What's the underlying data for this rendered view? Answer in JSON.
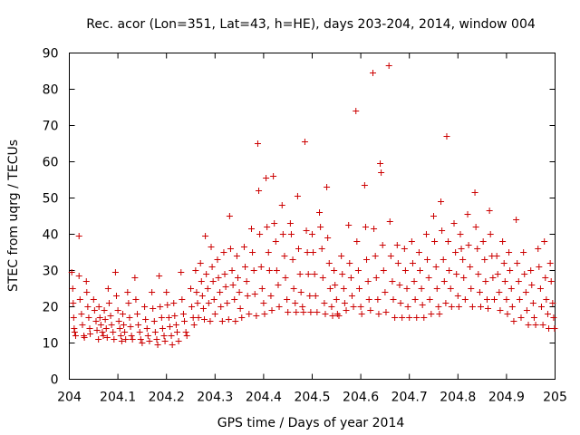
{
  "chart_data": {
    "type": "scatter",
    "title": "Rec. acor (Lon=351, Lat=43, h=HE), days 203-204, 2014, window 004",
    "xlabel": "GPS time / Days of year 2014",
    "ylabel": "STEC from uqrg / TECUs",
    "xlim": [
      204,
      205
    ],
    "ylim": [
      0,
      90
    ],
    "xticks": [
      204,
      204.1,
      204.2,
      204.3,
      204.4,
      204.5,
      204.6,
      204.7,
      204.8,
      204.9,
      205
    ],
    "xtick_labels": [
      "204",
      "204.1",
      "204.2",
      "204.3",
      "204.4",
      "204.5",
      "204.6",
      "204.7",
      "204.8",
      "204.9",
      "205"
    ],
    "yticks": [
      0,
      10,
      20,
      30,
      40,
      50,
      60,
      70,
      80,
      90
    ],
    "ytick_labels": [
      "0",
      "10",
      "20",
      "30",
      "40",
      "50",
      "60",
      "70",
      "80",
      "90"
    ],
    "grid": false,
    "marker": "+",
    "color": "#cc0000",
    "points": [
      [
        204.005,
        29.5
      ],
      [
        204.007,
        25
      ],
      [
        204.008,
        21
      ],
      [
        204.009,
        17
      ],
      [
        204.01,
        14
      ],
      [
        204.011,
        13
      ],
      [
        204.013,
        12
      ],
      [
        204.02,
        28.5
      ],
      [
        204.02,
        39.5
      ],
      [
        204.022,
        22
      ],
      [
        204.025,
        18
      ],
      [
        204.027,
        15
      ],
      [
        204.03,
        12
      ],
      [
        204.031,
        11.5
      ],
      [
        204.035,
        27
      ],
      [
        204.036,
        24
      ],
      [
        204.038,
        20
      ],
      [
        204.04,
        17
      ],
      [
        204.042,
        14
      ],
      [
        204.043,
        12.5
      ],
      [
        204.05,
        22
      ],
      [
        204.052,
        19
      ],
      [
        204.055,
        16
      ],
      [
        204.057,
        13.5
      ],
      [
        204.06,
        11
      ],
      [
        204.061,
        20
      ],
      [
        204.063,
        17
      ],
      [
        204.065,
        15
      ],
      [
        204.068,
        13
      ],
      [
        204.07,
        12
      ],
      [
        204.072,
        19
      ],
      [
        204.074,
        16.5
      ],
      [
        204.076,
        14
      ],
      [
        204.078,
        11.5
      ],
      [
        204.08,
        25
      ],
      [
        204.082,
        21
      ],
      [
        204.085,
        17.5
      ],
      [
        204.087,
        15
      ],
      [
        204.09,
        13
      ],
      [
        204.092,
        11
      ],
      [
        204.095,
        29.5
      ],
      [
        204.097,
        23
      ],
      [
        204.1,
        19
      ],
      [
        204.102,
        16
      ],
      [
        204.104,
        14
      ],
      [
        204.106,
        12
      ],
      [
        204.108,
        10.5
      ],
      [
        204.11,
        18
      ],
      [
        204.112,
        15
      ],
      [
        204.114,
        13
      ],
      [
        204.116,
        11
      ],
      [
        204.12,
        24
      ],
      [
        204.122,
        21
      ],
      [
        204.124,
        17
      ],
      [
        204.126,
        14.5
      ],
      [
        204.128,
        12
      ],
      [
        204.13,
        11
      ],
      [
        204.135,
        28
      ],
      [
        204.137,
        22
      ],
      [
        204.14,
        18
      ],
      [
        204.142,
        15
      ],
      [
        204.145,
        13
      ],
      [
        204.147,
        11
      ],
      [
        204.15,
        10
      ],
      [
        204.155,
        20
      ],
      [
        204.157,
        16.5
      ],
      [
        204.16,
        14
      ],
      [
        204.162,
        12
      ],
      [
        204.165,
        10.5
      ],
      [
        204.17,
        24
      ],
      [
        204.172,
        19.5
      ],
      [
        204.175,
        16
      ],
      [
        204.177,
        13
      ],
      [
        204.18,
        11
      ],
      [
        204.182,
        9.5
      ],
      [
        204.185,
        28.5
      ],
      [
        204.187,
        20
      ],
      [
        204.19,
        17
      ],
      [
        204.192,
        14
      ],
      [
        204.195,
        12
      ],
      [
        204.197,
        10.5
      ],
      [
        204.2,
        24
      ],
      [
        204.202,
        20.5
      ],
      [
        204.205,
        17
      ],
      [
        204.207,
        14.5
      ],
      [
        204.21,
        12
      ],
      [
        204.212,
        9.5
      ],
      [
        204.215,
        21
      ],
      [
        204.217,
        17.5
      ],
      [
        204.22,
        15
      ],
      [
        204.222,
        13
      ],
      [
        204.225,
        10.5
      ],
      [
        204.23,
        29.5
      ],
      [
        204.232,
        22
      ],
      [
        204.235,
        18
      ],
      [
        204.237,
        16
      ],
      [
        204.24,
        13
      ],
      [
        204.242,
        12
      ],
      [
        204.25,
        25
      ],
      [
        204.252,
        20
      ],
      [
        204.255,
        17
      ],
      [
        204.257,
        15
      ],
      [
        204.26,
        30
      ],
      [
        204.262,
        24
      ],
      [
        204.264,
        21
      ],
      [
        204.266,
        17
      ],
      [
        204.27,
        32
      ],
      [
        204.272,
        27
      ],
      [
        204.274,
        23
      ],
      [
        204.276,
        19.5
      ],
      [
        204.278,
        16.5
      ],
      [
        204.28,
        39.5
      ],
      [
        204.282,
        29
      ],
      [
        204.285,
        25
      ],
      [
        204.287,
        21
      ],
      [
        204.29,
        16
      ],
      [
        204.292,
        36.5
      ],
      [
        204.294,
        31
      ],
      [
        204.296,
        27
      ],
      [
        204.298,
        22
      ],
      [
        204.3,
        18
      ],
      [
        204.305,
        33
      ],
      [
        204.307,
        28
      ],
      [
        204.31,
        24
      ],
      [
        204.312,
        20
      ],
      [
        204.315,
        16
      ],
      [
        204.318,
        35
      ],
      [
        204.32,
        29
      ],
      [
        204.322,
        25.5
      ],
      [
        204.325,
        21
      ],
      [
        204.328,
        16.5
      ],
      [
        204.33,
        45
      ],
      [
        204.332,
        36
      ],
      [
        204.335,
        30
      ],
      [
        204.337,
        26
      ],
      [
        204.34,
        22
      ],
      [
        204.342,
        16
      ],
      [
        204.345,
        34
      ],
      [
        204.347,
        28
      ],
      [
        204.35,
        24
      ],
      [
        204.352,
        19.5
      ],
      [
        204.355,
        17
      ],
      [
        204.36,
        36.5
      ],
      [
        204.362,
        31
      ],
      [
        204.365,
        27
      ],
      [
        204.367,
        23
      ],
      [
        204.37,
        18
      ],
      [
        204.375,
        41.5
      ],
      [
        204.377,
        35
      ],
      [
        204.38,
        30
      ],
      [
        204.382,
        23.5
      ],
      [
        204.385,
        17.5
      ],
      [
        204.388,
        65
      ],
      [
        204.39,
        52
      ],
      [
        204.392,
        40
      ],
      [
        204.395,
        31
      ],
      [
        204.397,
        25
      ],
      [
        204.4,
        21
      ],
      [
        204.402,
        18
      ],
      [
        204.405,
        55.5
      ],
      [
        204.407,
        42
      ],
      [
        204.41,
        35
      ],
      [
        204.412,
        30
      ],
      [
        204.415,
        23
      ],
      [
        204.417,
        19
      ],
      [
        204.42,
        56
      ],
      [
        204.422,
        43
      ],
      [
        204.425,
        38
      ],
      [
        204.427,
        30
      ],
      [
        204.43,
        26
      ],
      [
        204.432,
        20
      ],
      [
        204.438,
        48
      ],
      [
        204.44,
        40
      ],
      [
        204.443,
        34
      ],
      [
        204.445,
        28
      ],
      [
        204.448,
        22
      ],
      [
        204.45,
        18.5
      ],
      [
        204.455,
        43
      ],
      [
        204.457,
        40
      ],
      [
        204.46,
        33
      ],
      [
        204.462,
        25
      ],
      [
        204.465,
        21
      ],
      [
        204.467,
        18.5
      ],
      [
        204.47,
        50.5
      ],
      [
        204.472,
        36
      ],
      [
        204.475,
        29
      ],
      [
        204.477,
        24
      ],
      [
        204.48,
        20
      ],
      [
        204.482,
        18.5
      ],
      [
        204.485,
        65.5
      ],
      [
        204.488,
        41
      ],
      [
        204.49,
        35
      ],
      [
        204.492,
        29
      ],
      [
        204.495,
        23
      ],
      [
        204.497,
        18.5
      ],
      [
        204.5,
        40
      ],
      [
        204.502,
        35
      ],
      [
        204.505,
        29
      ],
      [
        204.507,
        23
      ],
      [
        204.51,
        18.5
      ],
      [
        204.515,
        46
      ],
      [
        204.517,
        42
      ],
      [
        204.52,
        36
      ],
      [
        204.522,
        28
      ],
      [
        204.525,
        21
      ],
      [
        204.527,
        18
      ],
      [
        204.53,
        53
      ],
      [
        204.532,
        39
      ],
      [
        204.535,
        32
      ],
      [
        204.537,
        25
      ],
      [
        204.54,
        20
      ],
      [
        204.542,
        17.5
      ],
      [
        204.545,
        30
      ],
      [
        204.547,
        26
      ],
      [
        204.55,
        22
      ],
      [
        204.552,
        18
      ],
      [
        204.555,
        17.5
      ],
      [
        204.56,
        34
      ],
      [
        204.562,
        29
      ],
      [
        204.565,
        25
      ],
      [
        204.567,
        21
      ],
      [
        204.57,
        19
      ],
      [
        204.575,
        42.5
      ],
      [
        204.577,
        32
      ],
      [
        204.58,
        28
      ],
      [
        204.582,
        23
      ],
      [
        204.585,
        20
      ],
      [
        204.59,
        74
      ],
      [
        204.592,
        38
      ],
      [
        204.595,
        30
      ],
      [
        204.597,
        25
      ],
      [
        204.6,
        20
      ],
      [
        204.602,
        18
      ],
      [
        204.608,
        53.5
      ],
      [
        204.61,
        42
      ],
      [
        204.612,
        33
      ],
      [
        204.615,
        27
      ],
      [
        204.617,
        22
      ],
      [
        204.62,
        19
      ],
      [
        204.625,
        84.5
      ],
      [
        204.627,
        41.5
      ],
      [
        204.63,
        34
      ],
      [
        204.632,
        28
      ],
      [
        204.635,
        22
      ],
      [
        204.637,
        18
      ],
      [
        204.64,
        59.5
      ],
      [
        204.642,
        57
      ],
      [
        204.645,
        37
      ],
      [
        204.647,
        30
      ],
      [
        204.65,
        24
      ],
      [
        204.652,
        18.5
      ],
      [
        204.658,
        86.5
      ],
      [
        204.66,
        43.5
      ],
      [
        204.662,
        34
      ],
      [
        204.665,
        27
      ],
      [
        204.667,
        22
      ],
      [
        204.67,
        17
      ],
      [
        204.675,
        37
      ],
      [
        204.677,
        32
      ],
      [
        204.68,
        26
      ],
      [
        204.682,
        21
      ],
      [
        204.685,
        17
      ],
      [
        204.69,
        36
      ],
      [
        204.692,
        30
      ],
      [
        204.695,
        25
      ],
      [
        204.697,
        20
      ],
      [
        204.7,
        17
      ],
      [
        204.705,
        38
      ],
      [
        204.707,
        32
      ],
      [
        204.71,
        27
      ],
      [
        204.712,
        22
      ],
      [
        204.715,
        17
      ],
      [
        204.72,
        35
      ],
      [
        204.722,
        30
      ],
      [
        204.725,
        25
      ],
      [
        204.727,
        20.5
      ],
      [
        204.73,
        17
      ],
      [
        204.735,
        40
      ],
      [
        204.737,
        33
      ],
      [
        204.74,
        28
      ],
      [
        204.742,
        22
      ],
      [
        204.745,
        18
      ],
      [
        204.75,
        45
      ],
      [
        204.752,
        38
      ],
      [
        204.755,
        31
      ],
      [
        204.757,
        25
      ],
      [
        204.76,
        20
      ],
      [
        204.762,
        18
      ],
      [
        204.765,
        49
      ],
      [
        204.767,
        41
      ],
      [
        204.77,
        33
      ],
      [
        204.772,
        27
      ],
      [
        204.775,
        21
      ],
      [
        204.777,
        67
      ],
      [
        204.78,
        38
      ],
      [
        204.782,
        30
      ],
      [
        204.785,
        25
      ],
      [
        204.787,
        20
      ],
      [
        204.792,
        43
      ],
      [
        204.795,
        35
      ],
      [
        204.797,
        29
      ],
      [
        204.8,
        23
      ],
      [
        204.802,
        20
      ],
      [
        204.805,
        40
      ],
      [
        204.807,
        36
      ],
      [
        204.81,
        33
      ],
      [
        204.812,
        28
      ],
      [
        204.815,
        22
      ],
      [
        204.82,
        45.5
      ],
      [
        204.822,
        37
      ],
      [
        204.825,
        31
      ],
      [
        204.827,
        25
      ],
      [
        204.83,
        20
      ],
      [
        204.835,
        51.5
      ],
      [
        204.837,
        42
      ],
      [
        204.84,
        36
      ],
      [
        204.842,
        29
      ],
      [
        204.845,
        24
      ],
      [
        204.847,
        20
      ],
      [
        204.852,
        38
      ],
      [
        204.855,
        33
      ],
      [
        204.857,
        27
      ],
      [
        204.86,
        22
      ],
      [
        204.862,
        19.5
      ],
      [
        204.865,
        46.5
      ],
      [
        204.867,
        40
      ],
      [
        204.87,
        34
      ],
      [
        204.872,
        28
      ],
      [
        204.875,
        22
      ],
      [
        204.88,
        34
      ],
      [
        204.882,
        29
      ],
      [
        204.885,
        24
      ],
      [
        204.887,
        19
      ],
      [
        204.892,
        38
      ],
      [
        204.895,
        32
      ],
      [
        204.897,
        27
      ],
      [
        204.9,
        22
      ],
      [
        204.902,
        18
      ],
      [
        204.905,
        35
      ],
      [
        204.907,
        30
      ],
      [
        204.91,
        25
      ],
      [
        204.912,
        20
      ],
      [
        204.915,
        16
      ],
      [
        204.92,
        44
      ],
      [
        204.922,
        32
      ],
      [
        204.925,
        27
      ],
      [
        204.927,
        22
      ],
      [
        204.93,
        17
      ],
      [
        204.935,
        35
      ],
      [
        204.937,
        29
      ],
      [
        204.94,
        24
      ],
      [
        204.942,
        19
      ],
      [
        204.945,
        15
      ],
      [
        204.95,
        30
      ],
      [
        204.952,
        26
      ],
      [
        204.955,
        21
      ],
      [
        204.957,
        17
      ],
      [
        204.96,
        15
      ],
      [
        204.965,
        36
      ],
      [
        204.967,
        31
      ],
      [
        204.97,
        25
      ],
      [
        204.972,
        20
      ],
      [
        204.975,
        15
      ],
      [
        204.978,
        38
      ],
      [
        204.98,
        28
      ],
      [
        204.982,
        22
      ],
      [
        204.985,
        18
      ],
      [
        204.987,
        14
      ],
      [
        204.99,
        32
      ],
      [
        204.992,
        27
      ],
      [
        204.995,
        21
      ],
      [
        204.997,
        17
      ],
      [
        204.999,
        14
      ]
    ]
  }
}
